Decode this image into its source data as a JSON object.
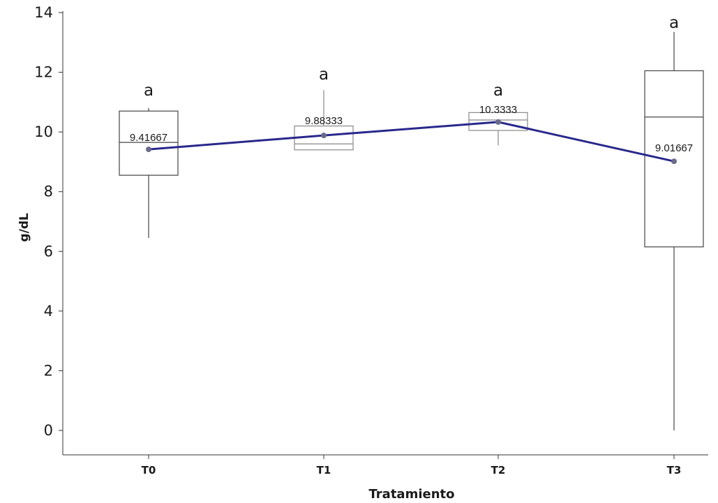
{
  "chart_data": {
    "type": "box",
    "xlabel": "Tratamiento",
    "ylabel": "g/dL",
    "ylim": [
      -0.8,
      14
    ],
    "yticks": [
      0,
      2,
      4,
      6,
      8,
      10,
      12,
      14
    ],
    "grid": false,
    "categories": [
      "T0",
      "T1",
      "T2",
      "T3"
    ],
    "boxes": [
      {
        "category": "T0",
        "whisker_low": 6.45,
        "q1": 8.55,
        "median": 9.65,
        "q3": 10.7,
        "whisker_high": 10.8,
        "mean": 9.41667,
        "mean_label": "9.41667",
        "group_letter": "a"
      },
      {
        "category": "T1",
        "whisker_low": 9.4,
        "q1": 9.4,
        "median": 9.6,
        "q3": 10.2,
        "whisker_high": 11.4,
        "mean": 9.88333,
        "mean_label": "9.88333",
        "group_letter": "a"
      },
      {
        "category": "T2",
        "whisker_low": 9.55,
        "q1": 10.05,
        "median": 10.4,
        "q3": 10.65,
        "whisker_high": 10.65,
        "mean": 10.3333,
        "mean_label": "10.3333",
        "group_letter": "a"
      },
      {
        "category": "T3",
        "whisker_low": 0.0,
        "q1": 6.15,
        "median": 10.5,
        "q3": 12.05,
        "whisker_high": 13.35,
        "mean": 9.01667,
        "mean_label": "9.01667",
        "group_letter": "a"
      }
    ],
    "mean_line_color": "#28288c"
  }
}
